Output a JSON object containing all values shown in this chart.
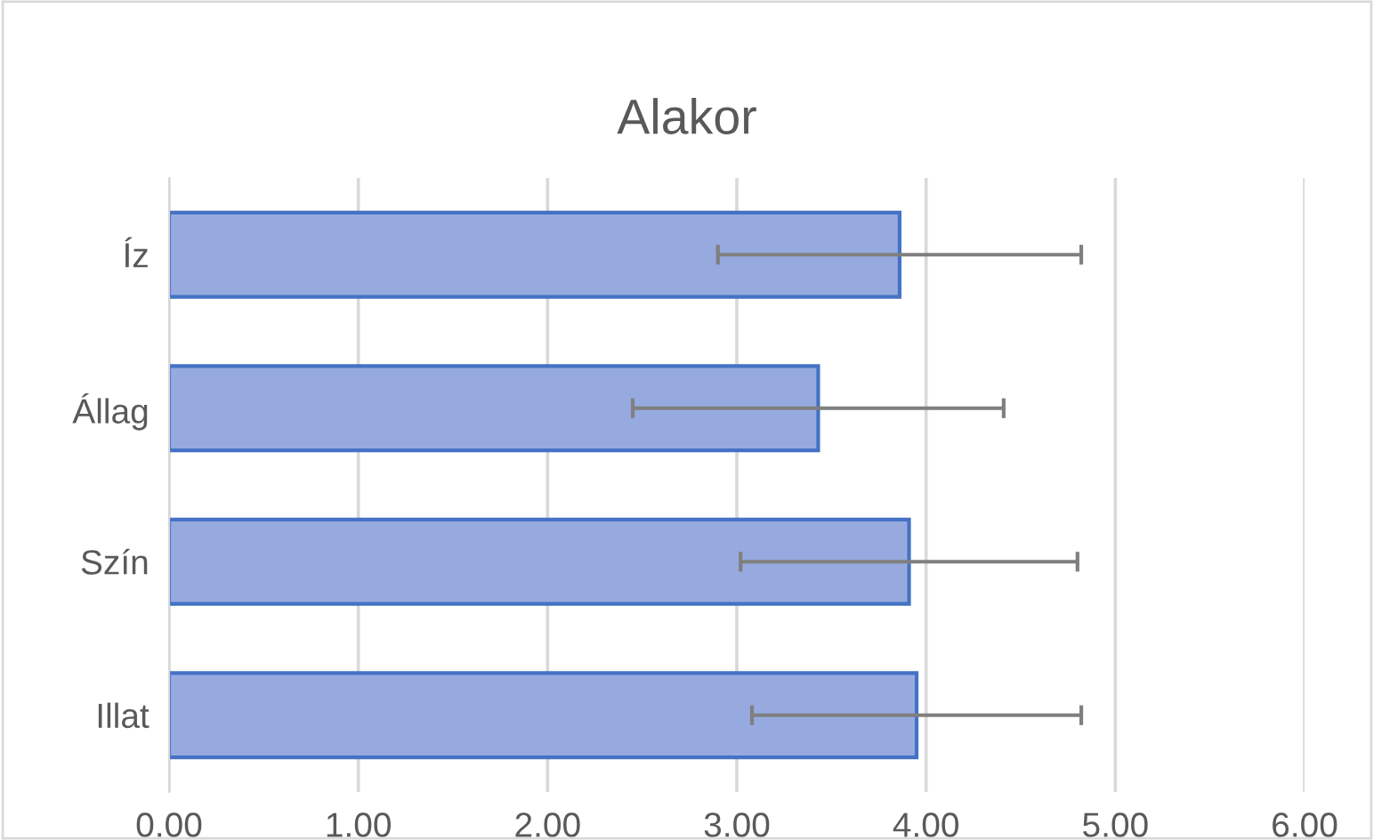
{
  "chart_data": {
    "type": "bar",
    "orientation": "horizontal",
    "title": "Alakor",
    "categories": [
      "Íz",
      "Állag",
      "Szín",
      "Illat"
    ],
    "values": [
      3.86,
      3.43,
      3.91,
      3.95
    ],
    "errors": [
      0.96,
      0.98,
      0.89,
      0.87
    ],
    "color": "#96aadf",
    "xlim": [
      0,
      6
    ],
    "xticks": [
      {
        "value": 0,
        "label": "0.00"
      },
      {
        "value": 1,
        "label": "1.00"
      },
      {
        "value": 2,
        "label": "2.00"
      },
      {
        "value": 3,
        "label": "3.00"
      },
      {
        "value": 4,
        "label": "4.00"
      },
      {
        "value": 5,
        "label": "5.00"
      },
      {
        "value": 6,
        "label": "6.00"
      }
    ],
    "grid": "x",
    "legend": false
  }
}
